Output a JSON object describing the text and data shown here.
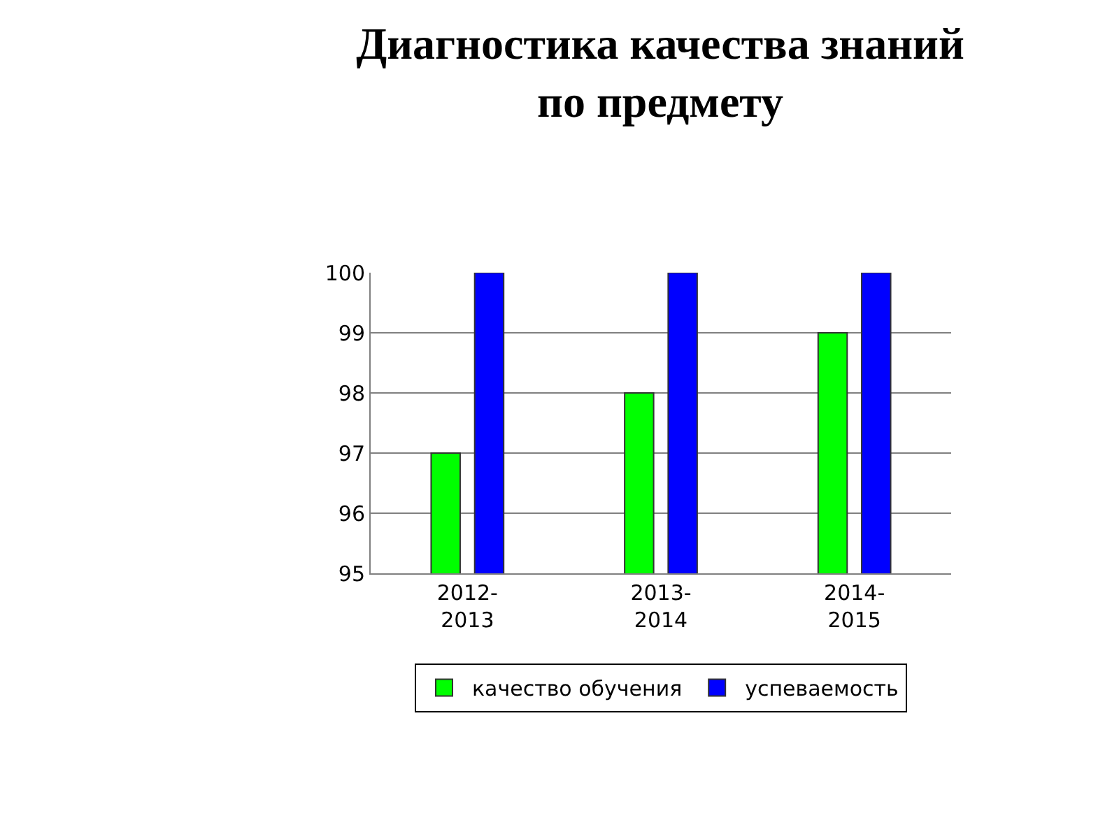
{
  "chart_data": {
    "type": "bar",
    "title": "Диагностика качества знаний\nпо предмету",
    "categories": [
      "2012-\n2013",
      "2013-\n2014",
      "2014-\n2015"
    ],
    "series": [
      {
        "name": "качество обучения",
        "color": "#00ff00",
        "values": [
          97,
          98,
          99
        ]
      },
      {
        "name": "успеваемость",
        "color": "#0000ff",
        "values": [
          100,
          100,
          100
        ]
      }
    ],
    "ylim": [
      95,
      100
    ],
    "yticks": [
      95,
      96,
      97,
      98,
      99,
      100
    ],
    "grid": "y",
    "legend": "bottom"
  }
}
